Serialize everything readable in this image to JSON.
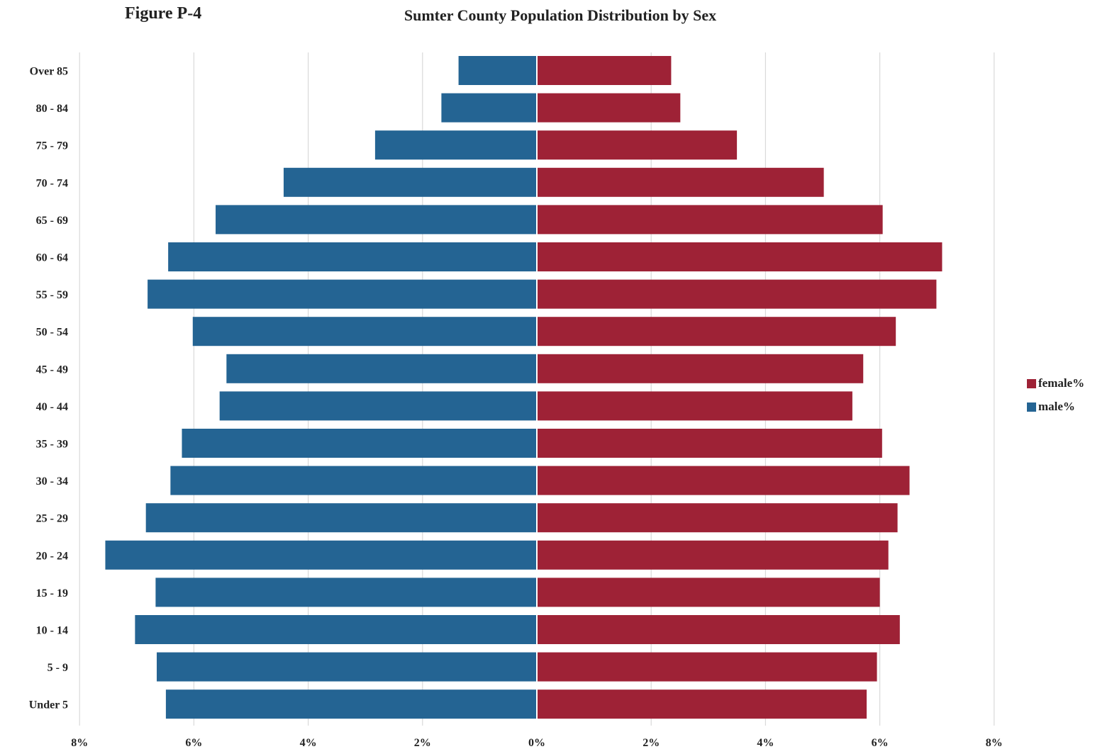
{
  "header": {
    "figure_label": "Figure P-4",
    "title": "Sumter County Population Distribution by Sex"
  },
  "chart_data": {
    "type": "bar",
    "orientation": "horizontal",
    "subtype": "population pyramid",
    "title": "Sumter County Population Distribution by Sex",
    "categories": [
      "Over 85",
      "80 - 84",
      "75 - 79",
      "70 - 74",
      "65 - 69",
      "60 - 64",
      "55 - 59",
      "50 - 54",
      "45 - 49",
      "40 - 44",
      "35 - 39",
      "30 - 34",
      "25 - 29",
      "20 - 24",
      "15 - 19",
      "10 - 14",
      "5 - 9",
      "Under 5"
    ],
    "series": [
      {
        "name": "male%",
        "color": "#246493",
        "side": "left",
        "values": [
          1.37,
          1.67,
          2.83,
          4.43,
          5.62,
          6.45,
          6.81,
          6.02,
          5.43,
          5.55,
          6.21,
          6.41,
          6.84,
          7.55,
          6.67,
          7.03,
          6.65,
          6.49
        ]
      },
      {
        "name": "female%",
        "color": "#9e2236",
        "side": "right",
        "values": [
          2.35,
          2.51,
          3.5,
          5.02,
          6.05,
          7.09,
          6.99,
          6.28,
          5.71,
          5.52,
          6.04,
          6.52,
          6.31,
          6.15,
          6.0,
          6.35,
          5.95,
          5.77
        ]
      }
    ],
    "x_ticks": [
      "8%",
      "6%",
      "4%",
      "2%",
      "0%",
      "2%",
      "4%",
      "6%",
      "8%"
    ],
    "xlim": [
      -8,
      8
    ],
    "grid": true,
    "legend_position": "right",
    "colors": {
      "gridline": "#d9d9d9",
      "zero_line": "#ffffff"
    }
  }
}
